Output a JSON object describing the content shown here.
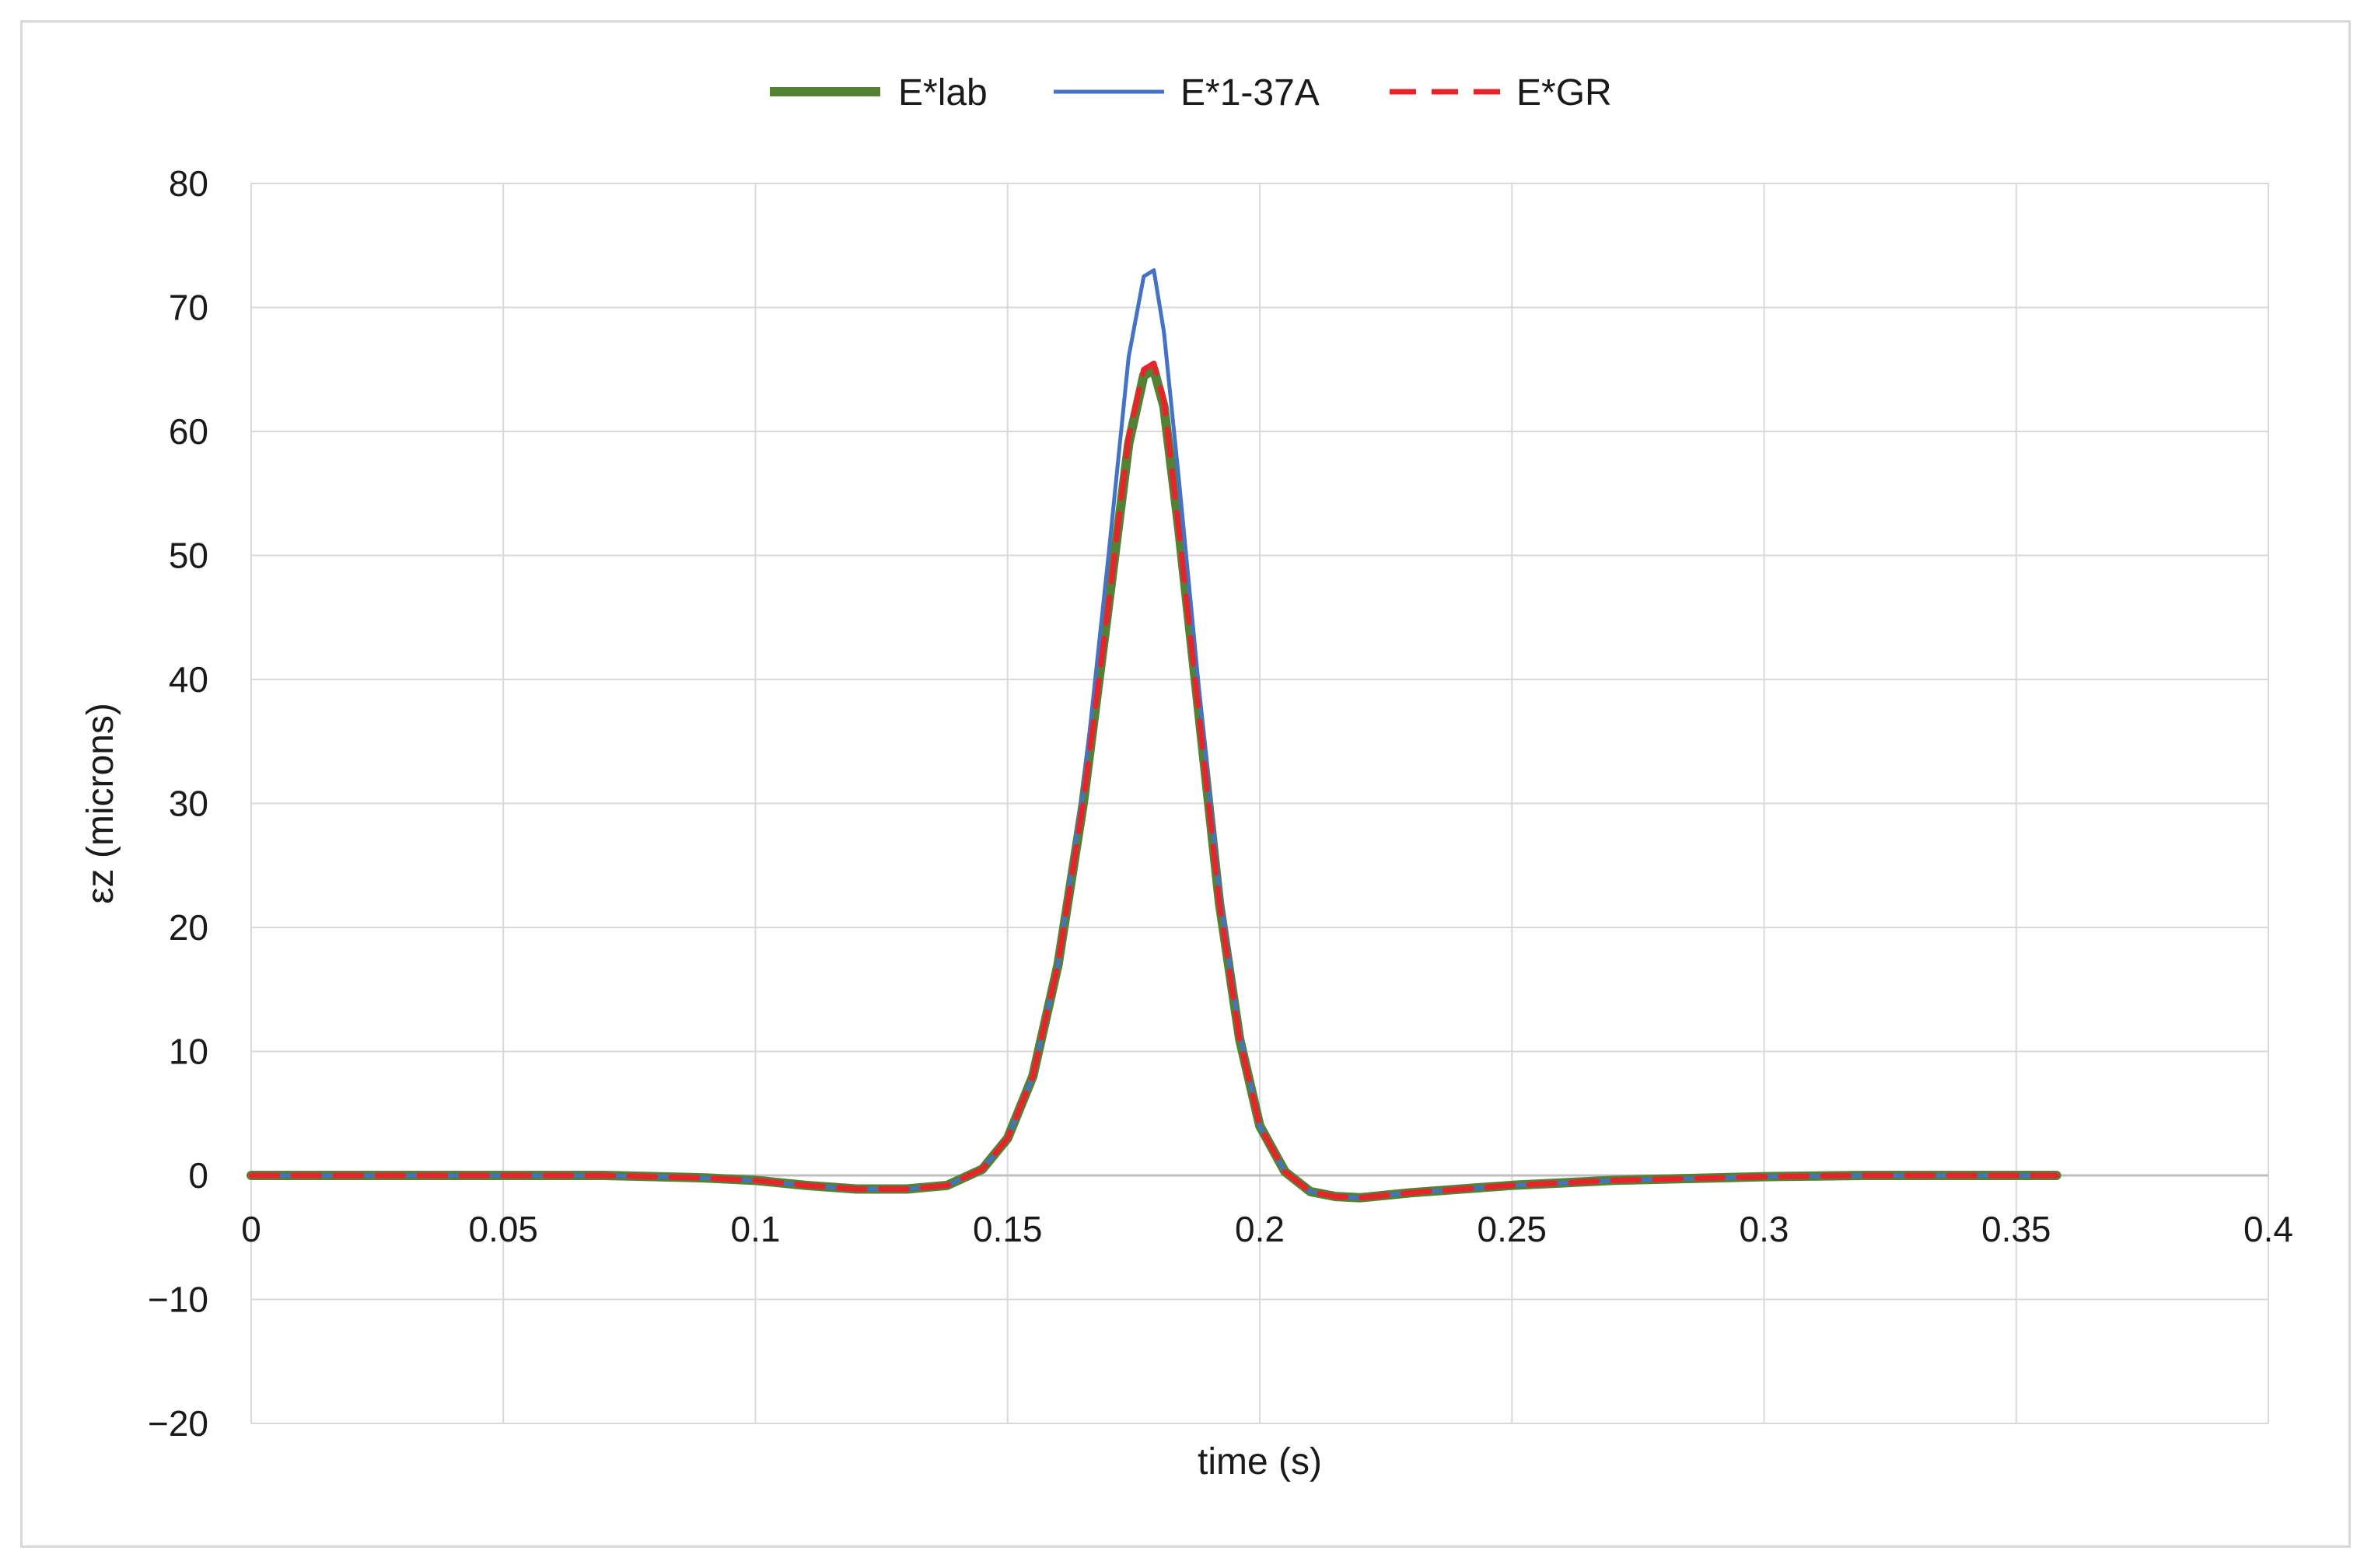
{
  "chart_data": {
    "type": "line",
    "title": "",
    "xlabel": "time (s)",
    "ylabel": "εz (microns)",
    "xlim": [
      0,
      0.4
    ],
    "ylim": [
      -20,
      80
    ],
    "xticks": [
      0,
      0.05,
      0.1,
      0.15,
      0.2,
      0.25,
      0.3,
      0.35,
      0.4
    ],
    "yticks": [
      -20,
      -10,
      0,
      10,
      20,
      30,
      40,
      50,
      60,
      70,
      80
    ],
    "xtick_labels": [
      "0",
      "0.05",
      "0.1",
      "0.15",
      "0.2",
      "0.25",
      "0.3",
      "0.35",
      "0.4"
    ],
    "ytick_labels": [
      "−20",
      "−10",
      "0",
      "10",
      "20",
      "30",
      "40",
      "50",
      "60",
      "70",
      "80"
    ],
    "grid": true,
    "legend_position": "top",
    "series": [
      {
        "name": "E*lab",
        "color": "#548235",
        "style": "solid-thick",
        "x": [
          0,
          0.05,
          0.07,
          0.09,
          0.1,
          0.11,
          0.12,
          0.13,
          0.138,
          0.145,
          0.15,
          0.155,
          0.16,
          0.165,
          0.17,
          0.174,
          0.177,
          0.179,
          0.181,
          0.184,
          0.188,
          0.192,
          0.196,
          0.2,
          0.205,
          0.21,
          0.215,
          0.22,
          0.225,
          0.23,
          0.24,
          0.25,
          0.26,
          0.27,
          0.28,
          0.29,
          0.3,
          0.32,
          0.34,
          0.358
        ],
        "y": [
          0,
          0,
          0,
          -0.2,
          -0.4,
          -0.8,
          -1.1,
          -1.1,
          -0.8,
          0.5,
          3,
          8,
          17,
          30,
          46,
          59,
          64.5,
          65,
          62,
          52,
          37,
          22,
          11,
          4,
          0.3,
          -1.3,
          -1.7,
          -1.8,
          -1.6,
          -1.4,
          -1.1,
          -0.8,
          -0.6,
          -0.4,
          -0.3,
          -0.2,
          -0.1,
          0,
          0,
          0
        ]
      },
      {
        "name": "E*1-37A",
        "color": "#4472C4",
        "style": "solid-thin",
        "x": [
          0,
          0.05,
          0.07,
          0.09,
          0.1,
          0.11,
          0.12,
          0.13,
          0.138,
          0.145,
          0.15,
          0.155,
          0.16,
          0.165,
          0.17,
          0.174,
          0.177,
          0.179,
          0.181,
          0.184,
          0.188,
          0.192,
          0.196,
          0.2,
          0.205,
          0.21,
          0.215,
          0.22,
          0.225,
          0.23,
          0.24,
          0.25,
          0.26,
          0.27,
          0.28,
          0.29,
          0.3,
          0.32,
          0.34,
          0.358
        ],
        "y": [
          0,
          0,
          0,
          -0.2,
          -0.4,
          -0.8,
          -1.1,
          -1.1,
          -0.8,
          0.5,
          3,
          8,
          17,
          31,
          50,
          66,
          72.5,
          73,
          68,
          56,
          39,
          23,
          11.5,
          4,
          0.3,
          -1.3,
          -1.7,
          -1.8,
          -1.6,
          -1.4,
          -1.1,
          -0.8,
          -0.6,
          -0.4,
          -0.3,
          -0.2,
          -0.1,
          0,
          0,
          0
        ]
      },
      {
        "name": "E*GR",
        "color": "#E8242B",
        "style": "dashed",
        "x": [
          0,
          0.05,
          0.07,
          0.09,
          0.1,
          0.11,
          0.12,
          0.13,
          0.138,
          0.145,
          0.15,
          0.155,
          0.16,
          0.165,
          0.17,
          0.174,
          0.177,
          0.179,
          0.181,
          0.184,
          0.188,
          0.192,
          0.196,
          0.2,
          0.205,
          0.21,
          0.215,
          0.22,
          0.225,
          0.23,
          0.24,
          0.25,
          0.26,
          0.27,
          0.28,
          0.29,
          0.3,
          0.32,
          0.34,
          0.358
        ],
        "y": [
          0,
          0,
          0,
          -0.2,
          -0.4,
          -0.8,
          -1.1,
          -1.1,
          -0.8,
          0.5,
          3,
          8,
          17,
          30,
          46,
          59.5,
          65,
          65.5,
          62.5,
          52,
          37,
          22,
          11,
          4,
          0.3,
          -1.3,
          -1.7,
          -1.8,
          -1.6,
          -1.4,
          -1.1,
          -0.8,
          -0.6,
          -0.4,
          -0.3,
          -0.2,
          -0.1,
          0,
          0,
          0
        ]
      }
    ]
  }
}
